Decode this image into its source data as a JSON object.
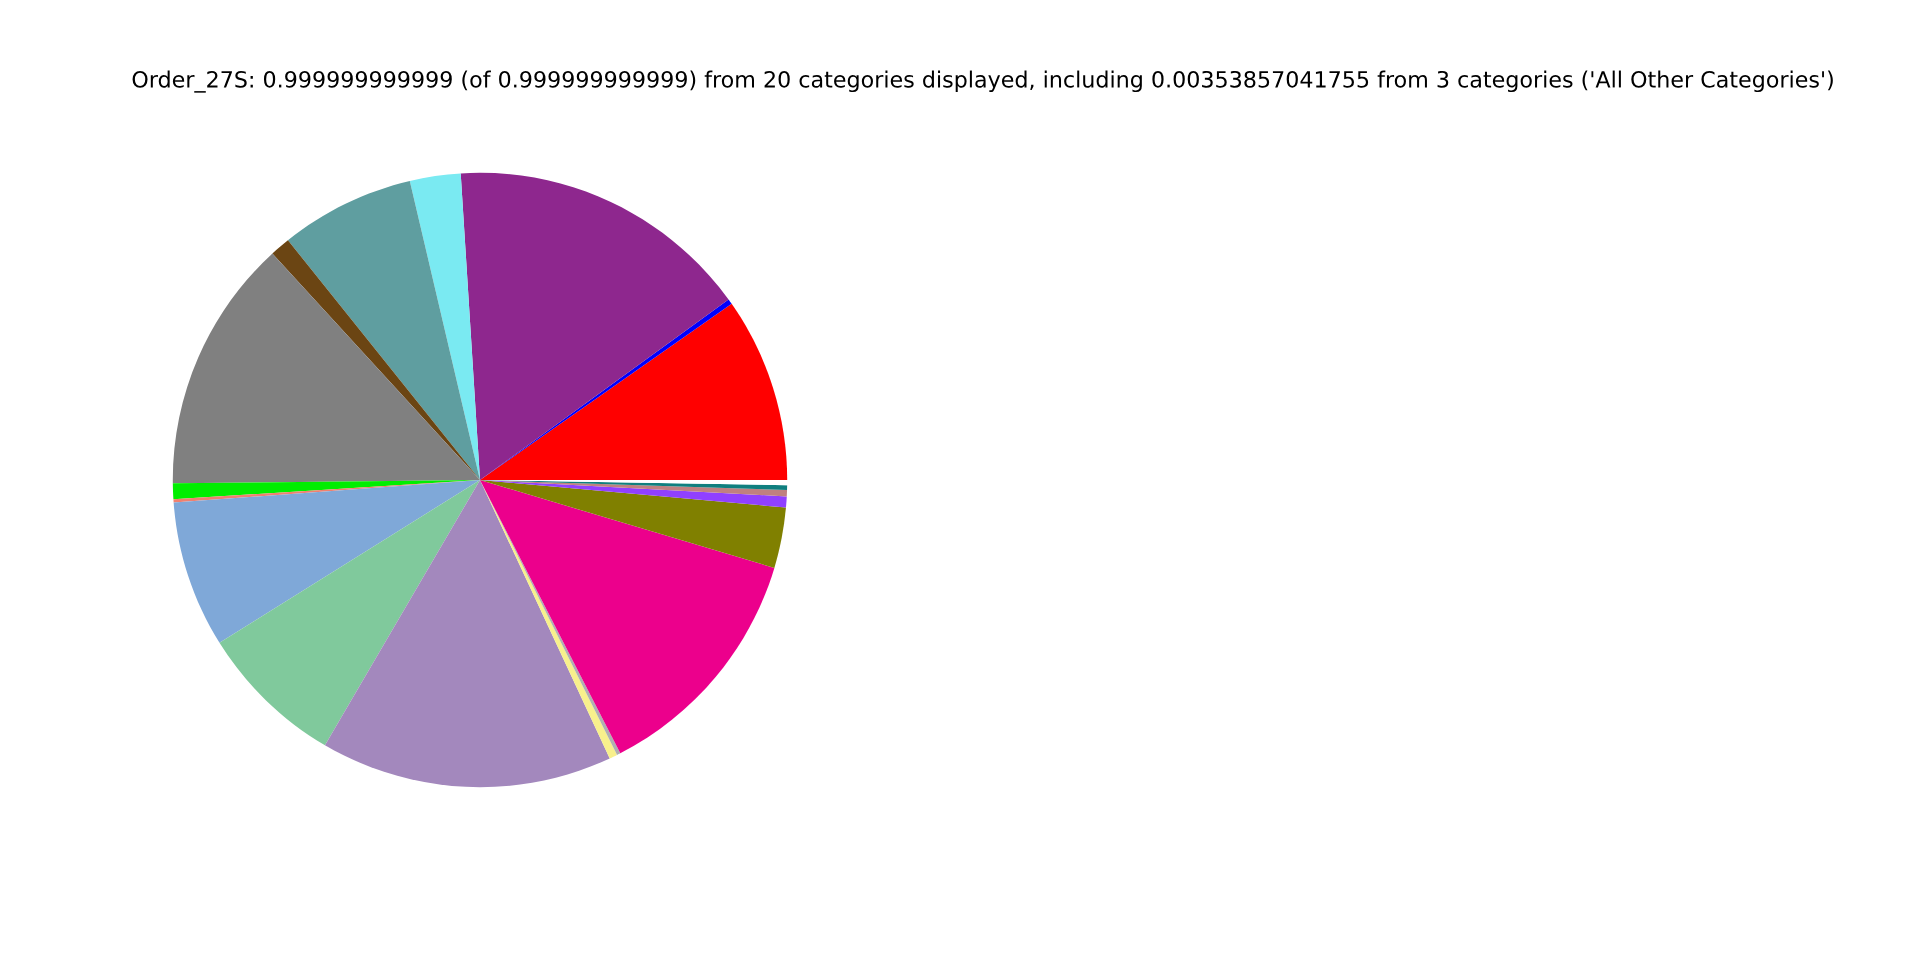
{
  "chart_data": {
    "type": "pie",
    "title": "Order_27S: 0.999999999999 (of 0.999999999999) from 20 categories displayed, including 0.00353857041755 from 3 categories ('All Other Categories')",
    "categories": [
      null,
      null,
      null,
      null,
      null,
      null,
      null,
      null,
      null,
      null,
      null,
      null,
      null,
      null,
      null,
      null,
      null,
      null,
      null,
      null
    ],
    "values": [
      9.72,
      0.28,
      16.0,
      2.67,
      7.08,
      1.06,
      13.36,
      0.83,
      0.17,
      7.72,
      7.69,
      15.36,
      0.42,
      0.19,
      12.83,
      3.19,
      0.58,
      0.33,
      0.25,
      0.27
    ],
    "colors": [
      "#ff0000",
      "#0000ff",
      "#8e278e",
      "#7aeaf2",
      "#5f9ea0",
      "#6b4513",
      "#808080",
      "#00ee00",
      "#f08070",
      "#7fa8d8",
      "#80c99c",
      "#a388bd",
      "#f8f08c",
      "#b0b0b0",
      "#ec008c",
      "#808000",
      "#9040ff",
      "#c08080",
      "#0f7f7f",
      "#ffffff"
    ]
  }
}
